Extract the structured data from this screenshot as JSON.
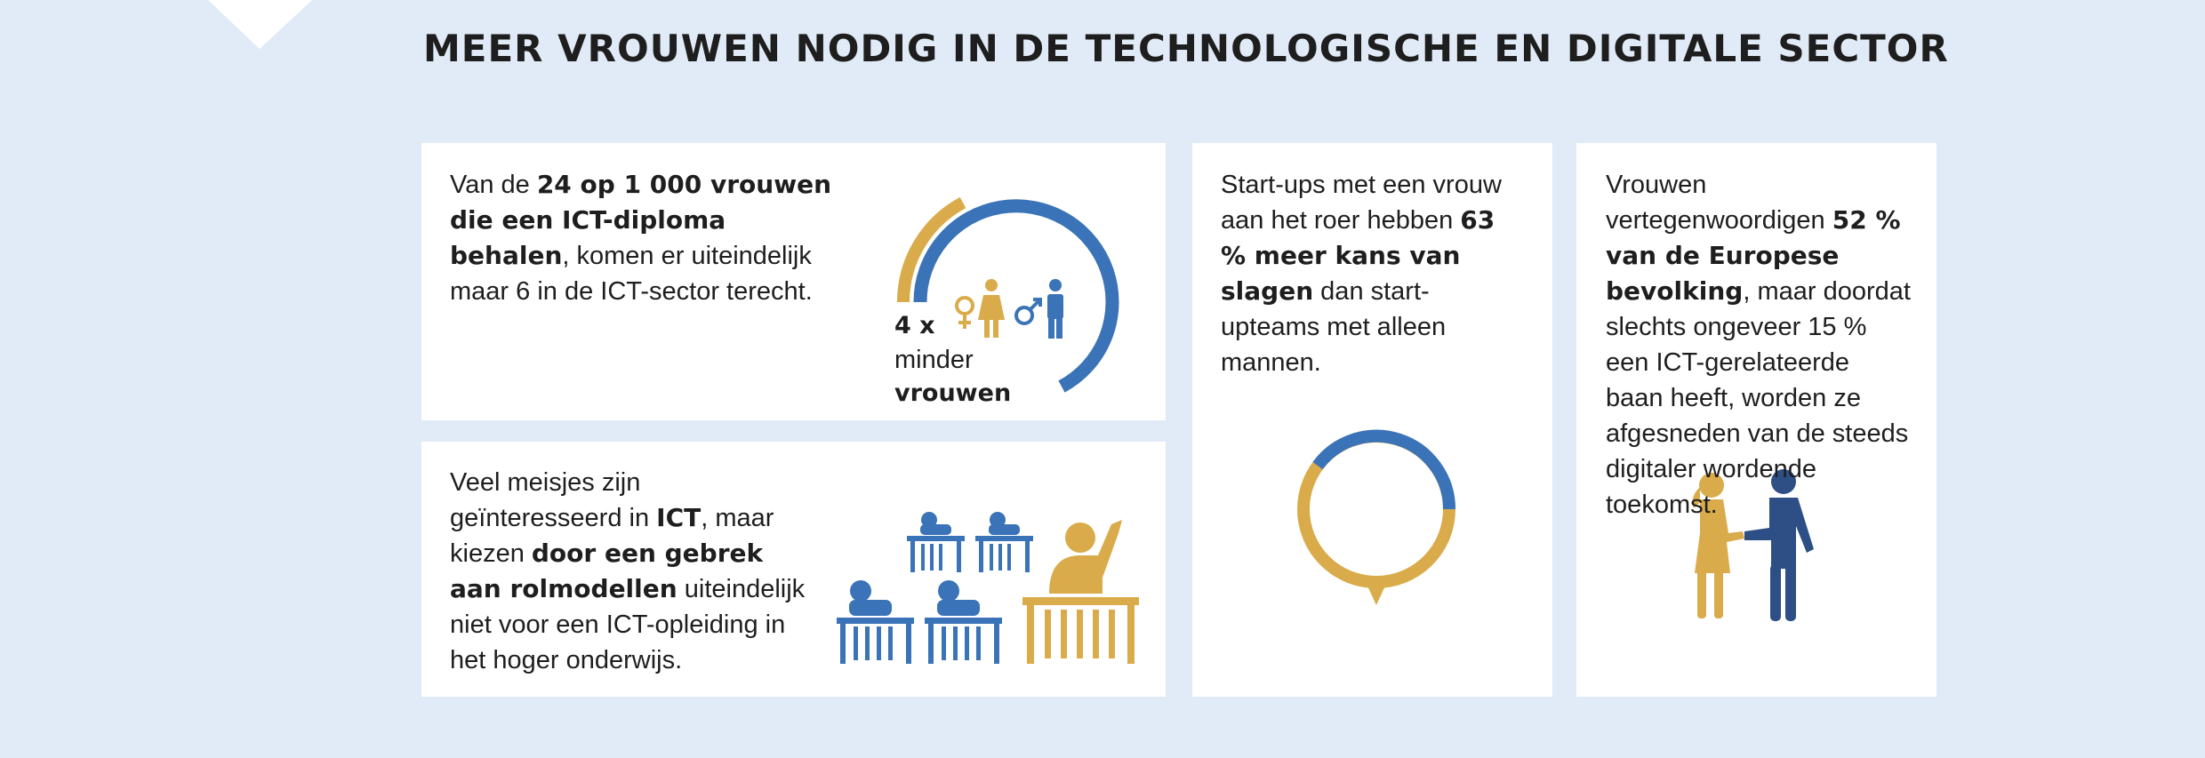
{
  "title": "MEER VROUWEN NODIG IN DE TECHNOLOGISCHE EN DIGITALE SECTOR",
  "panels": [
    {
      "text": [
        {
          "text": "Van de ",
          "bold": false
        },
        {
          "text": "24 op 1 000 vrouwen die een ICT-diploma behalen",
          "bold": true
        },
        {
          "text": ", komen er uiteindelijk maar 6 in de ICT-sector terecht.",
          "bold": false
        }
      ],
      "figure": {
        "count": "4 x",
        "line1": "minder",
        "line2": "vrouwen"
      }
    },
    {
      "text": [
        {
          "text": "Veel meisjes zijn geïnteresseerd in ",
          "bold": false
        },
        {
          "text": "ICT",
          "bold": true
        },
        {
          "text": ", maar kiezen ",
          "bold": false
        },
        {
          "text": "door een gebrek aan rolmodellen",
          "bold": true
        },
        {
          "text": " uiteindelijk niet voor een ICT-opleiding in het hoger onderwijs.",
          "bold": false
        }
      ]
    },
    {
      "text": [
        {
          "text": "Start-ups met een vrouw aan het roer hebben ",
          "bold": false
        },
        {
          "text": "63 % meer kans van slagen",
          "bold": true
        },
        {
          "text": " dan start-upteams met alleen mannen.",
          "bold": false
        }
      ]
    },
    {
      "text": [
        {
          "text": "Vrouwen vertegenwoordigen ",
          "bold": false
        },
        {
          "text": "52 % van de Europese bevolking",
          "bold": true
        },
        {
          "text": ", maar doordat slechts ongeveer 15 % een ICT-gerelateerde baan heeft, worden ze afgesneden van de steeds digitaler wordende toekomst.",
          "bold": false
        }
      ]
    }
  ]
}
